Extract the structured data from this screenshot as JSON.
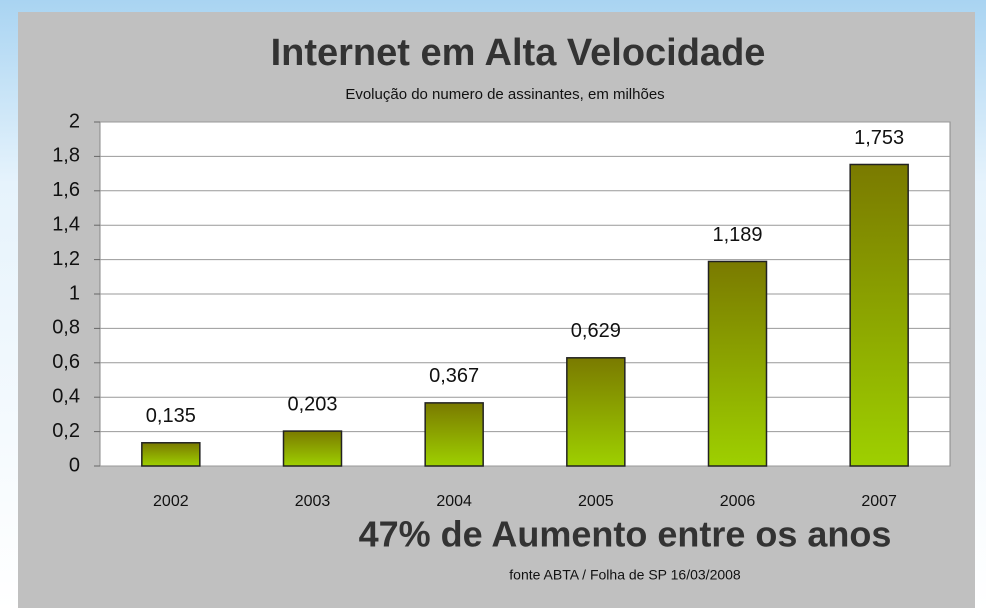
{
  "chart_data": {
    "type": "bar",
    "title": "Internet em Alta Velocidade",
    "subtitle": "Evolução do numero de assinantes, em milhões",
    "categories": [
      "2002",
      "2003",
      "2004",
      "2005",
      "2006",
      "2007"
    ],
    "values": [
      0.135,
      0.203,
      0.367,
      0.629,
      1.189,
      1.753
    ],
    "value_labels": [
      "0,135",
      "0,203",
      "0,367",
      "0,629",
      "1,189",
      "1,753"
    ],
    "color": "#8fb800",
    "ylim": [
      0,
      2
    ],
    "yticks": [
      0,
      {
        "value": 0.2,
        "label": "0,2"
      },
      {
        "value": 0.4,
        "label": "0,4"
      },
      {
        "value": 0.6,
        "label": "0,6"
      },
      {
        "value": 0.8,
        "label": "0,8"
      },
      1,
      {
        "value": 1.2,
        "label": "1,2"
      },
      {
        "value": 1.4,
        "label": "1,4"
      },
      {
        "value": 1.6,
        "label": "1,6"
      },
      {
        "value": 1.8,
        "label": "1,8"
      },
      2
    ],
    "grid": true,
    "annotation": "47% de Aumento entre os anos",
    "source": "fonte ABTA / Folha de SP 16/03/2008"
  }
}
